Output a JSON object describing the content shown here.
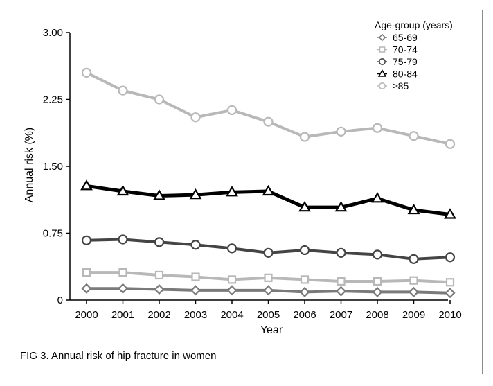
{
  "caption": "FIG 3. Annual risk of hip fracture in women",
  "chart_data": {
    "type": "line",
    "title": "",
    "xlabel": "Year",
    "ylabel": "Annual risk (%)",
    "ylim": [
      0,
      3.0
    ],
    "yticks": [
      "0",
      "0.75",
      "1.50",
      "2.25",
      "3.00"
    ],
    "ytick_values": [
      0,
      0.75,
      1.5,
      2.25,
      3.0
    ],
    "categories": [
      "2000",
      "2001",
      "2002",
      "2003",
      "2004",
      "2005",
      "2006",
      "2007",
      "2008",
      "2009",
      "2010"
    ],
    "grid": false,
    "legend": {
      "title": "Age-group (years)",
      "placement": "top-right"
    },
    "series": [
      {
        "name": "65-69",
        "marker": "diamond",
        "color": "#7a7a7a",
        "width": 4,
        "values": [
          0.13,
          0.13,
          0.12,
          0.11,
          0.11,
          0.11,
          0.09,
          0.1,
          0.09,
          0.09,
          0.08
        ]
      },
      {
        "name": "70-74",
        "marker": "square",
        "color": "#b8b8b8",
        "width": 4,
        "values": [
          0.31,
          0.31,
          0.28,
          0.26,
          0.23,
          0.25,
          0.23,
          0.21,
          0.21,
          0.22,
          0.2
        ]
      },
      {
        "name": "75-79",
        "marker": "circle",
        "color": "#444444",
        "width": 4,
        "values": [
          0.67,
          0.68,
          0.65,
          0.62,
          0.58,
          0.53,
          0.56,
          0.53,
          0.51,
          0.46,
          0.48
        ]
      },
      {
        "name": "80-84",
        "marker": "triangle",
        "color": "#000000",
        "width": 5,
        "values": [
          1.28,
          1.22,
          1.17,
          1.18,
          1.21,
          1.22,
          1.04,
          1.04,
          1.14,
          1.01,
          0.96
        ]
      },
      {
        "name": "≥85",
        "marker": "circle",
        "color": "#b8b8b8",
        "width": 4,
        "values": [
          2.55,
          2.35,
          2.25,
          2.05,
          2.13,
          2.0,
          1.83,
          1.89,
          1.93,
          1.84,
          1.75
        ]
      }
    ]
  }
}
